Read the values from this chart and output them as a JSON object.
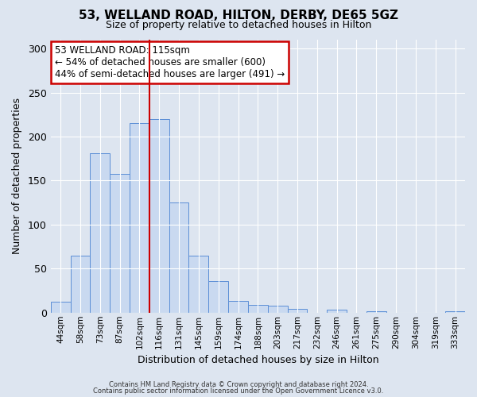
{
  "title": "53, WELLAND ROAD, HILTON, DERBY, DE65 5GZ",
  "subtitle": "Size of property relative to detached houses in Hilton",
  "xlabel": "Distribution of detached houses by size in Hilton",
  "ylabel": "Number of detached properties",
  "bar_labels": [
    "44sqm",
    "58sqm",
    "73sqm",
    "87sqm",
    "102sqm",
    "116sqm",
    "131sqm",
    "145sqm",
    "159sqm",
    "174sqm",
    "188sqm",
    "203sqm",
    "217sqm",
    "232sqm",
    "246sqm",
    "261sqm",
    "275sqm",
    "290sqm",
    "304sqm",
    "319sqm",
    "333sqm"
  ],
  "bar_values": [
    12,
    65,
    181,
    158,
    215,
    220,
    125,
    65,
    36,
    13,
    9,
    8,
    4,
    0,
    3,
    0,
    2,
    0,
    0,
    0,
    2
  ],
  "bar_color": "#c9d9f0",
  "bar_edge_color": "#5b8ed6",
  "vline_x": 4.5,
  "vline_color": "#cc0000",
  "ylim": [
    0,
    310
  ],
  "yticks": [
    0,
    50,
    100,
    150,
    200,
    250,
    300
  ],
  "annotation_text": "53 WELLAND ROAD: 115sqm\n← 54% of detached houses are smaller (600)\n44% of semi-detached houses are larger (491) →",
  "annotation_box_color": "#ffffff",
  "annotation_box_edge": "#cc0000",
  "footer_line1": "Contains HM Land Registry data © Crown copyright and database right 2024.",
  "footer_line2": "Contains public sector information licensed under the Open Government Licence v3.0.",
  "background_color": "#dde5f0",
  "plot_bg_color": "#dde5f0",
  "title_fontsize": 11,
  "subtitle_fontsize": 9
}
